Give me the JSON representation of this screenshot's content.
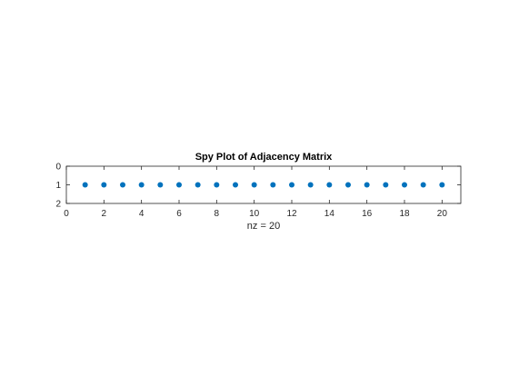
{
  "chart_data": {
    "type": "scatter",
    "title": "Spy Plot of Adjacency Matrix",
    "xlabel": "nz = 20",
    "ylabel": "",
    "xlim": [
      0,
      21
    ],
    "ylim": [
      0,
      2
    ],
    "y_reversed": true,
    "xticks": [
      0,
      2,
      4,
      6,
      8,
      10,
      12,
      14,
      16,
      18,
      20
    ],
    "yticks": [
      0,
      1,
      2
    ],
    "grid": false,
    "series": [
      {
        "x": [
          1,
          2,
          3,
          4,
          5,
          6,
          7,
          8,
          9,
          10,
          11,
          12,
          13,
          14,
          15,
          16,
          17,
          18,
          19,
          20
        ],
        "y": [
          1,
          1,
          1,
          1,
          1,
          1,
          1,
          1,
          1,
          1,
          1,
          1,
          1,
          1,
          1,
          1,
          1,
          1,
          1,
          1
        ],
        "color": "#0072BD"
      }
    ]
  },
  "colors": {
    "marker": "#0072BD",
    "axis": "#262626",
    "background": "#ffffff"
  }
}
